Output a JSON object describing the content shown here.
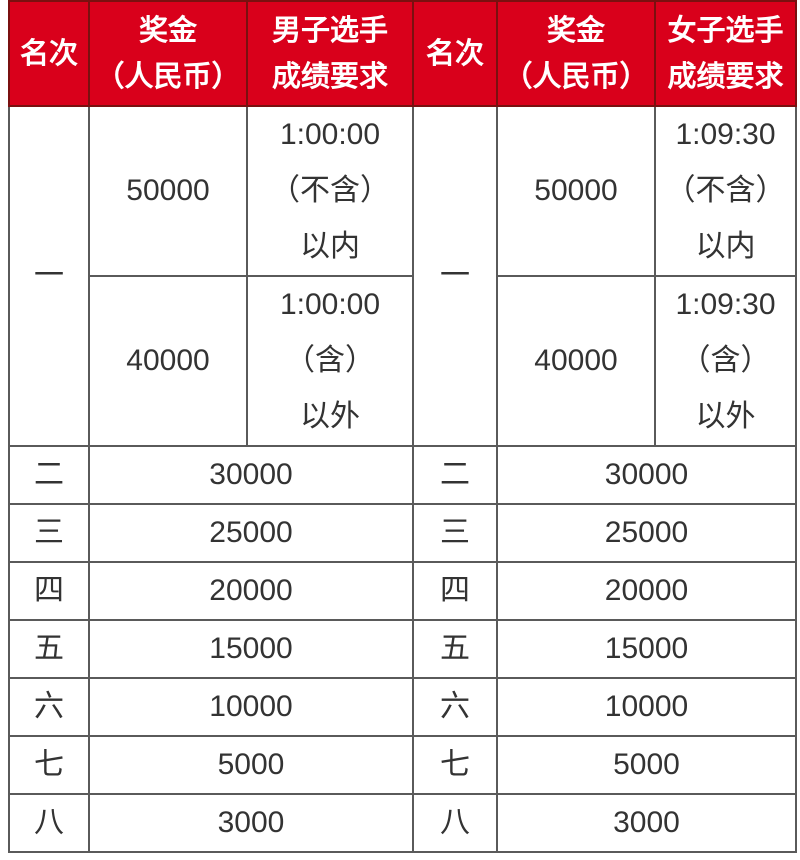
{
  "header": {
    "rank": "名次",
    "prize_line1": "奖金",
    "prize_line2": "（人民币）",
    "men_line1": "男子选手",
    "men_line2": "成绩要求",
    "women_line1": "女子选手",
    "women_line2": "成绩要求"
  },
  "colors": {
    "header_bg": "#d9001b",
    "header_text": "#ffffff",
    "border": "#5a5a5a"
  },
  "first_place": {
    "rank": "一",
    "men": [
      {
        "prize": "50000",
        "req": [
          "1:00:00",
          "（不含）",
          "以内"
        ]
      },
      {
        "prize": "40000",
        "req": [
          "1:00:00",
          "（含）",
          "以外"
        ]
      }
    ],
    "women": [
      {
        "prize": "50000",
        "req": [
          "1:09:30",
          "（不含）",
          "以内"
        ]
      },
      {
        "prize": "40000",
        "req": [
          "1:09:30",
          "（含）",
          "以外"
        ]
      }
    ]
  },
  "rows": [
    {
      "rank": "二",
      "prize": "30000"
    },
    {
      "rank": "三",
      "prize": "25000"
    },
    {
      "rank": "四",
      "prize": "20000"
    },
    {
      "rank": "五",
      "prize": "15000"
    },
    {
      "rank": "六",
      "prize": "10000"
    },
    {
      "rank": "七",
      "prize": "5000"
    },
    {
      "rank": "八",
      "prize": "3000"
    }
  ]
}
